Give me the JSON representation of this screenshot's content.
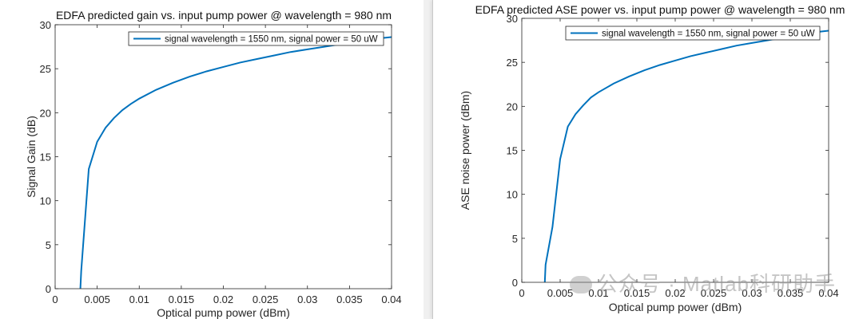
{
  "chart_data": [
    {
      "type": "line",
      "title": "EDFA predicted gain vs. input pump power @ wavelength = 980 nm",
      "xlabel": "Optical pump power (dBm)",
      "ylabel": "Signal Gain (dB)",
      "xlim": [
        0,
        0.04
      ],
      "ylim": [
        0,
        30
      ],
      "xticks": [
        0,
        0.005,
        0.01,
        0.015,
        0.02,
        0.025,
        0.03,
        0.035,
        0.04
      ],
      "xtick_labels": [
        "0",
        "0.005",
        "0.01",
        "0.015",
        "0.02",
        "0.025",
        "0.03",
        "0.035",
        "0.04"
      ],
      "yticks": [
        0,
        5,
        10,
        15,
        20,
        25,
        30
      ],
      "ytick_labels": [
        "0",
        "5",
        "10",
        "15",
        "20",
        "25",
        "30"
      ],
      "grid": false,
      "legend": "top-right",
      "color": "#0072BD",
      "series": [
        {
          "name": "signal wavelength = 1550 nm, signal power = 50 uW",
          "x": [
            0.003,
            0.0031,
            0.004,
            0.005,
            0.006,
            0.007,
            0.008,
            0.009,
            0.01,
            0.012,
            0.014,
            0.016,
            0.018,
            0.02,
            0.022,
            0.024,
            0.026,
            0.028,
            0.03,
            0.032,
            0.034,
            0.036,
            0.038,
            0.04
          ],
          "y": [
            0,
            2,
            13.6,
            16.7,
            18.3,
            19.4,
            20.3,
            21.0,
            21.6,
            22.6,
            23.4,
            24.1,
            24.7,
            25.2,
            25.7,
            26.1,
            26.5,
            26.9,
            27.2,
            27.5,
            27.8,
            28.1,
            28.4,
            28.6
          ]
        }
      ]
    },
    {
      "type": "line",
      "title": "EDFA predicted ASE power vs. input pump power @ wavelength = 980 nm",
      "xlabel": "Optical pump power (dBm)",
      "ylabel": "ASE noise power (dBm)",
      "xlim": [
        0,
        0.04
      ],
      "ylim": [
        0,
        30
      ],
      "xticks": [
        0,
        0.005,
        0.01,
        0.015,
        0.02,
        0.025,
        0.03,
        0.035,
        0.04
      ],
      "xtick_labels": [
        "0",
        "0.005",
        "0.01",
        "0.015",
        "0.02",
        "0.025",
        "0.03",
        "0.035",
        "0.04"
      ],
      "yticks": [
        0,
        5,
        10,
        15,
        20,
        25,
        30
      ],
      "ytick_labels": [
        "0",
        "5",
        "10",
        "15",
        "20",
        "25",
        "30"
      ],
      "grid": false,
      "legend": "top-right",
      "color": "#0072BD",
      "series": [
        {
          "name": "signal wavelength = 1550 nm, signal power = 50 uW",
          "x": [
            0.003,
            0.0031,
            0.004,
            0.005,
            0.006,
            0.007,
            0.008,
            0.009,
            0.01,
            0.012,
            0.014,
            0.016,
            0.018,
            0.02,
            0.022,
            0.024,
            0.026,
            0.028,
            0.03,
            0.032,
            0.034,
            0.036,
            0.038,
            0.04
          ],
          "y": [
            0,
            2,
            6.3,
            14.0,
            17.7,
            19.1,
            20.1,
            21.0,
            21.6,
            22.6,
            23.4,
            24.1,
            24.7,
            25.2,
            25.7,
            26.1,
            26.5,
            26.9,
            27.2,
            27.5,
            27.8,
            28.1,
            28.4,
            28.6
          ]
        }
      ]
    }
  ],
  "watermark": "公众号 · Matlab科研助手"
}
